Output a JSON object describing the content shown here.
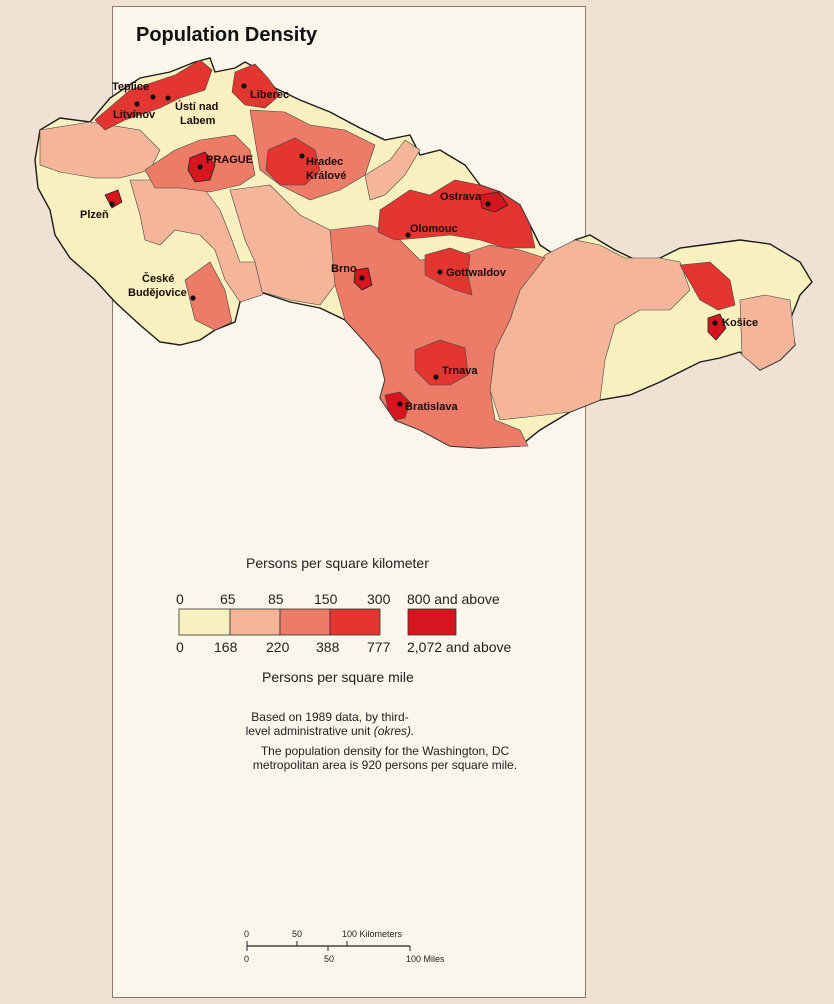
{
  "map": {
    "title": "Population Density",
    "cities": [
      {
        "name": "Teplice",
        "id": "teplice"
      },
      {
        "name": "Litvínov",
        "id": "litvinov"
      },
      {
        "name": "Ústí nad",
        "id": "usti-1"
      },
      {
        "name": "Labem",
        "id": "usti-2"
      },
      {
        "name": "Liberec",
        "id": "liberec"
      },
      {
        "name": "PRAGUE",
        "id": "prague"
      },
      {
        "name": "Hradec",
        "id": "hradec-1"
      },
      {
        "name": "Králové",
        "id": "hradec-2"
      },
      {
        "name": "Plzeň",
        "id": "plzen"
      },
      {
        "name": "Ostrava",
        "id": "ostrava"
      },
      {
        "name": "Olomouc",
        "id": "olomouc"
      },
      {
        "name": "Brno",
        "id": "brno"
      },
      {
        "name": "Gottwaldov",
        "id": "gottwaldov"
      },
      {
        "name": "České",
        "id": "ceske-1"
      },
      {
        "name": "Budějovice",
        "id": "ceske-2"
      },
      {
        "name": "Košice",
        "id": "kosice"
      },
      {
        "name": "Trnava",
        "id": "trnava"
      },
      {
        "name": "Bratislava",
        "id": "bratislava"
      }
    ]
  },
  "legend": {
    "km_title": "Persons per square kilometer",
    "mi_title": "Persons per square mile",
    "km_ticks": [
      "0",
      "65",
      "85",
      "150",
      "300"
    ],
    "mi_ticks": [
      "0",
      "168",
      "220",
      "388",
      "777"
    ],
    "top_class_km": "800 and above",
    "top_class_mi": "2,072 and above",
    "colors": [
      "#f8f1bf",
      "#f4b599",
      "#ec7c68",
      "#e33631",
      "#d5161f"
    ]
  },
  "notes": {
    "line1": "Based on 1989 data, by third-",
    "line2a": "level administrative unit",
    "line2b": "(okres).",
    "line3": "The population density for the Washington, DC",
    "line4": "metropolitan area is 920 persons per square mile."
  },
  "scale": {
    "km_ticks": [
      "0",
      "50",
      "100 Kilometers"
    ],
    "mi_ticks": [
      "0",
      "50",
      "100 Miles"
    ]
  }
}
